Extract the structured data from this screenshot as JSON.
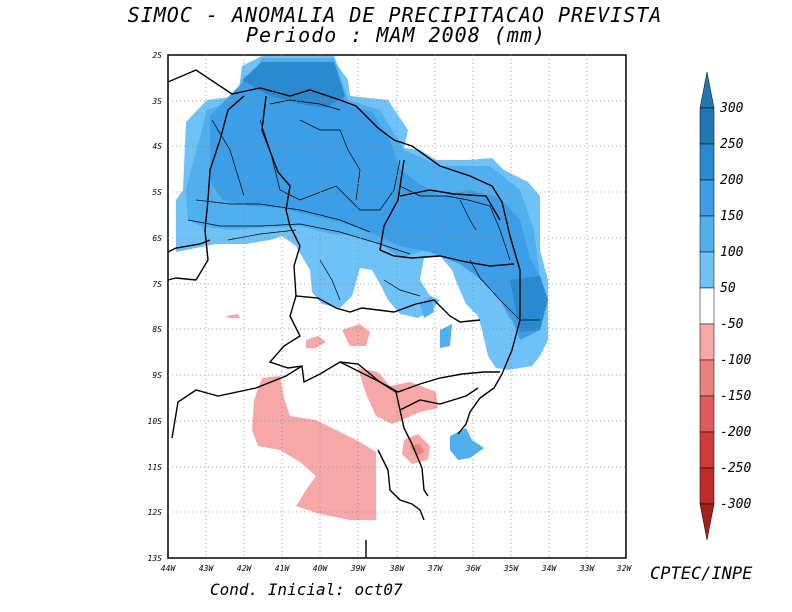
{
  "header": {
    "title": "SIMOC -  ANOMALIA DE PRECIPITACAO PREVISTA",
    "subtitle": "Periodo : MAM 2008 (mm)"
  },
  "footer": {
    "initial_condition": "Cond. Inicial: oct07",
    "credit": "CPTEC/INPE"
  },
  "map": {
    "longitude_labels": [
      "44W",
      "43W",
      "42W",
      "41W",
      "40W",
      "39W",
      "38W",
      "37W",
      "36W",
      "35W",
      "34W",
      "33W",
      "32W"
    ],
    "latitude_labels": [
      "2S",
      "3S",
      "4S",
      "5S",
      "6S",
      "7S",
      "8S",
      "9S",
      "10S",
      "11S",
      "12S",
      "13S"
    ],
    "lon_range": [
      -44,
      -32
    ],
    "lat_range": [
      -13,
      -2
    ]
  },
  "legend": {
    "labels": [
      "300",
      "250",
      "200",
      "150",
      "100",
      "50",
      "-50",
      "-100",
      "-150",
      "-200",
      "-250",
      "-300"
    ],
    "colors": [
      "#1f78b4",
      "#2a8ad0",
      "#3b9ee6",
      "#4fafef",
      "#6ec2f7",
      "#ffffff",
      "#f6a7a7",
      "#e98080",
      "#df5a5a",
      "#cf3a3a",
      "#c02a2a",
      "#a81e1e"
    ]
  }
}
